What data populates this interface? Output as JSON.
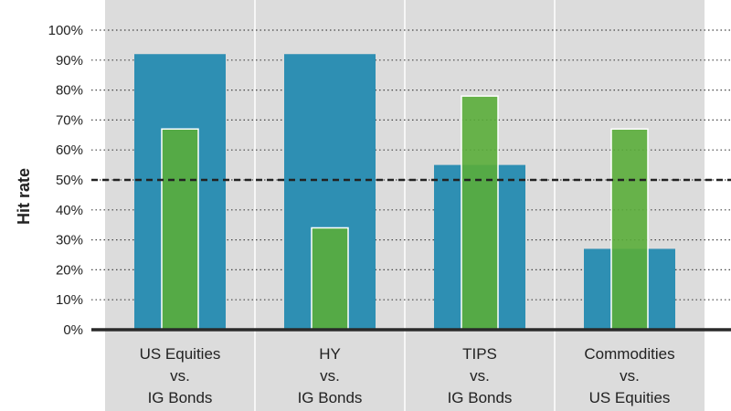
{
  "chart_data": {
    "type": "bar",
    "ylabel": "Hit rate",
    "ylim": [
      0,
      100
    ],
    "yticks": [
      {
        "value": 0,
        "label": "0%"
      },
      {
        "value": 10,
        "label": "10%"
      },
      {
        "value": 20,
        "label": "20%"
      },
      {
        "value": 30,
        "label": "30%"
      },
      {
        "value": 40,
        "label": "40%"
      },
      {
        "value": 50,
        "label": "50%"
      },
      {
        "value": 60,
        "label": "60%"
      },
      {
        "value": 70,
        "label": "70%"
      },
      {
        "value": 80,
        "label": "80%"
      },
      {
        "value": 90,
        "label": "90%"
      },
      {
        "value": 100,
        "label": "100%"
      }
    ],
    "reference_line": 50,
    "categories": [
      {
        "lines": [
          "US Equities",
          "vs.",
          "IG Bonds"
        ]
      },
      {
        "lines": [
          "HY",
          "vs.",
          "IG Bonds"
        ]
      },
      {
        "lines": [
          "TIPS",
          "vs.",
          "IG Bonds"
        ]
      },
      {
        "lines": [
          "Commodities",
          "vs.",
          "US Equities"
        ]
      }
    ],
    "series": [
      {
        "color": "#2e8fb3",
        "values": [
          92,
          92,
          55,
          27
        ]
      },
      {
        "color": "#5aad3a",
        "values": [
          67,
          34,
          78,
          67
        ]
      }
    ],
    "grid": "horizontal dotted",
    "legend": "none"
  }
}
